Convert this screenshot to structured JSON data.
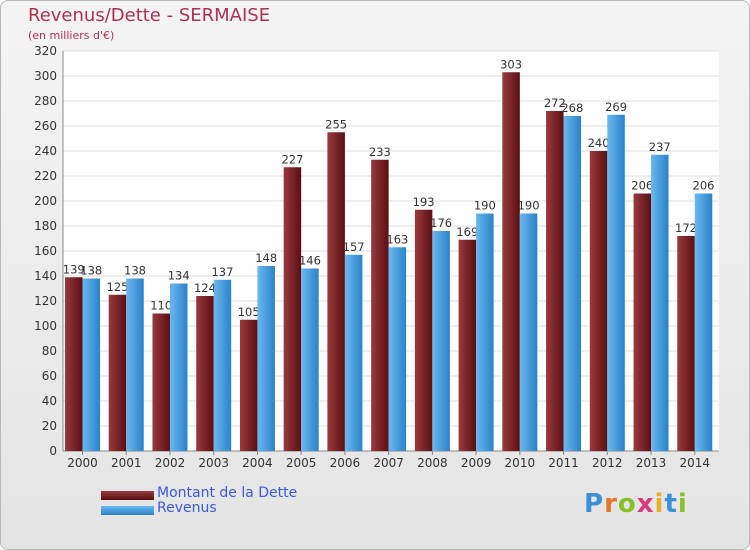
{
  "header": {
    "title": "Revenus/Dette - SERMAISE",
    "subtitle": "(en milliers d'€)"
  },
  "chart_data": {
    "type": "bar",
    "title": "Revenus/Dette - SERMAISE",
    "subtitle": "(en milliers d'€)",
    "xlabel": "",
    "ylabel": "",
    "ylim": [
      0,
      320
    ],
    "yticks": [
      0,
      20,
      40,
      60,
      80,
      100,
      120,
      140,
      160,
      180,
      200,
      220,
      240,
      260,
      280,
      300,
      320
    ],
    "grid": true,
    "legend_position": "bottom-left",
    "categories": [
      "2000",
      "2001",
      "2002",
      "2003",
      "2004",
      "2005",
      "2006",
      "2007",
      "2008",
      "2009",
      "2010",
      "2011",
      "2012",
      "2013",
      "2014"
    ],
    "series": [
      {
        "name": "Montant de la Dette",
        "color": "#7a1f24",
        "values": [
          139,
          125,
          110,
          124,
          105,
          227,
          255,
          233,
          193,
          169,
          303,
          272,
          240,
          206,
          172
        ]
      },
      {
        "name": "Revenus",
        "color": "#4aa3e6",
        "values": [
          138,
          138,
          134,
          137,
          148,
          146,
          157,
          163,
          176,
          190,
          190,
          268,
          269,
          237,
          206
        ]
      }
    ]
  },
  "legend": {
    "items": [
      {
        "label": "Montant de la Dette",
        "color": "#7a1f24"
      },
      {
        "label": "Revenus",
        "color": "#4aa3e6"
      }
    ]
  },
  "brand": {
    "name": "Proxiti",
    "letters": [
      "P",
      "r",
      "o",
      "x",
      "i",
      "t",
      "i"
    ],
    "letter_colors": [
      "#3a8fd8",
      "#e8742a",
      "#8bbf2a",
      "#d83a7a",
      "#e8b02a",
      "#3a8fd8",
      "#8bbf2a"
    ]
  }
}
